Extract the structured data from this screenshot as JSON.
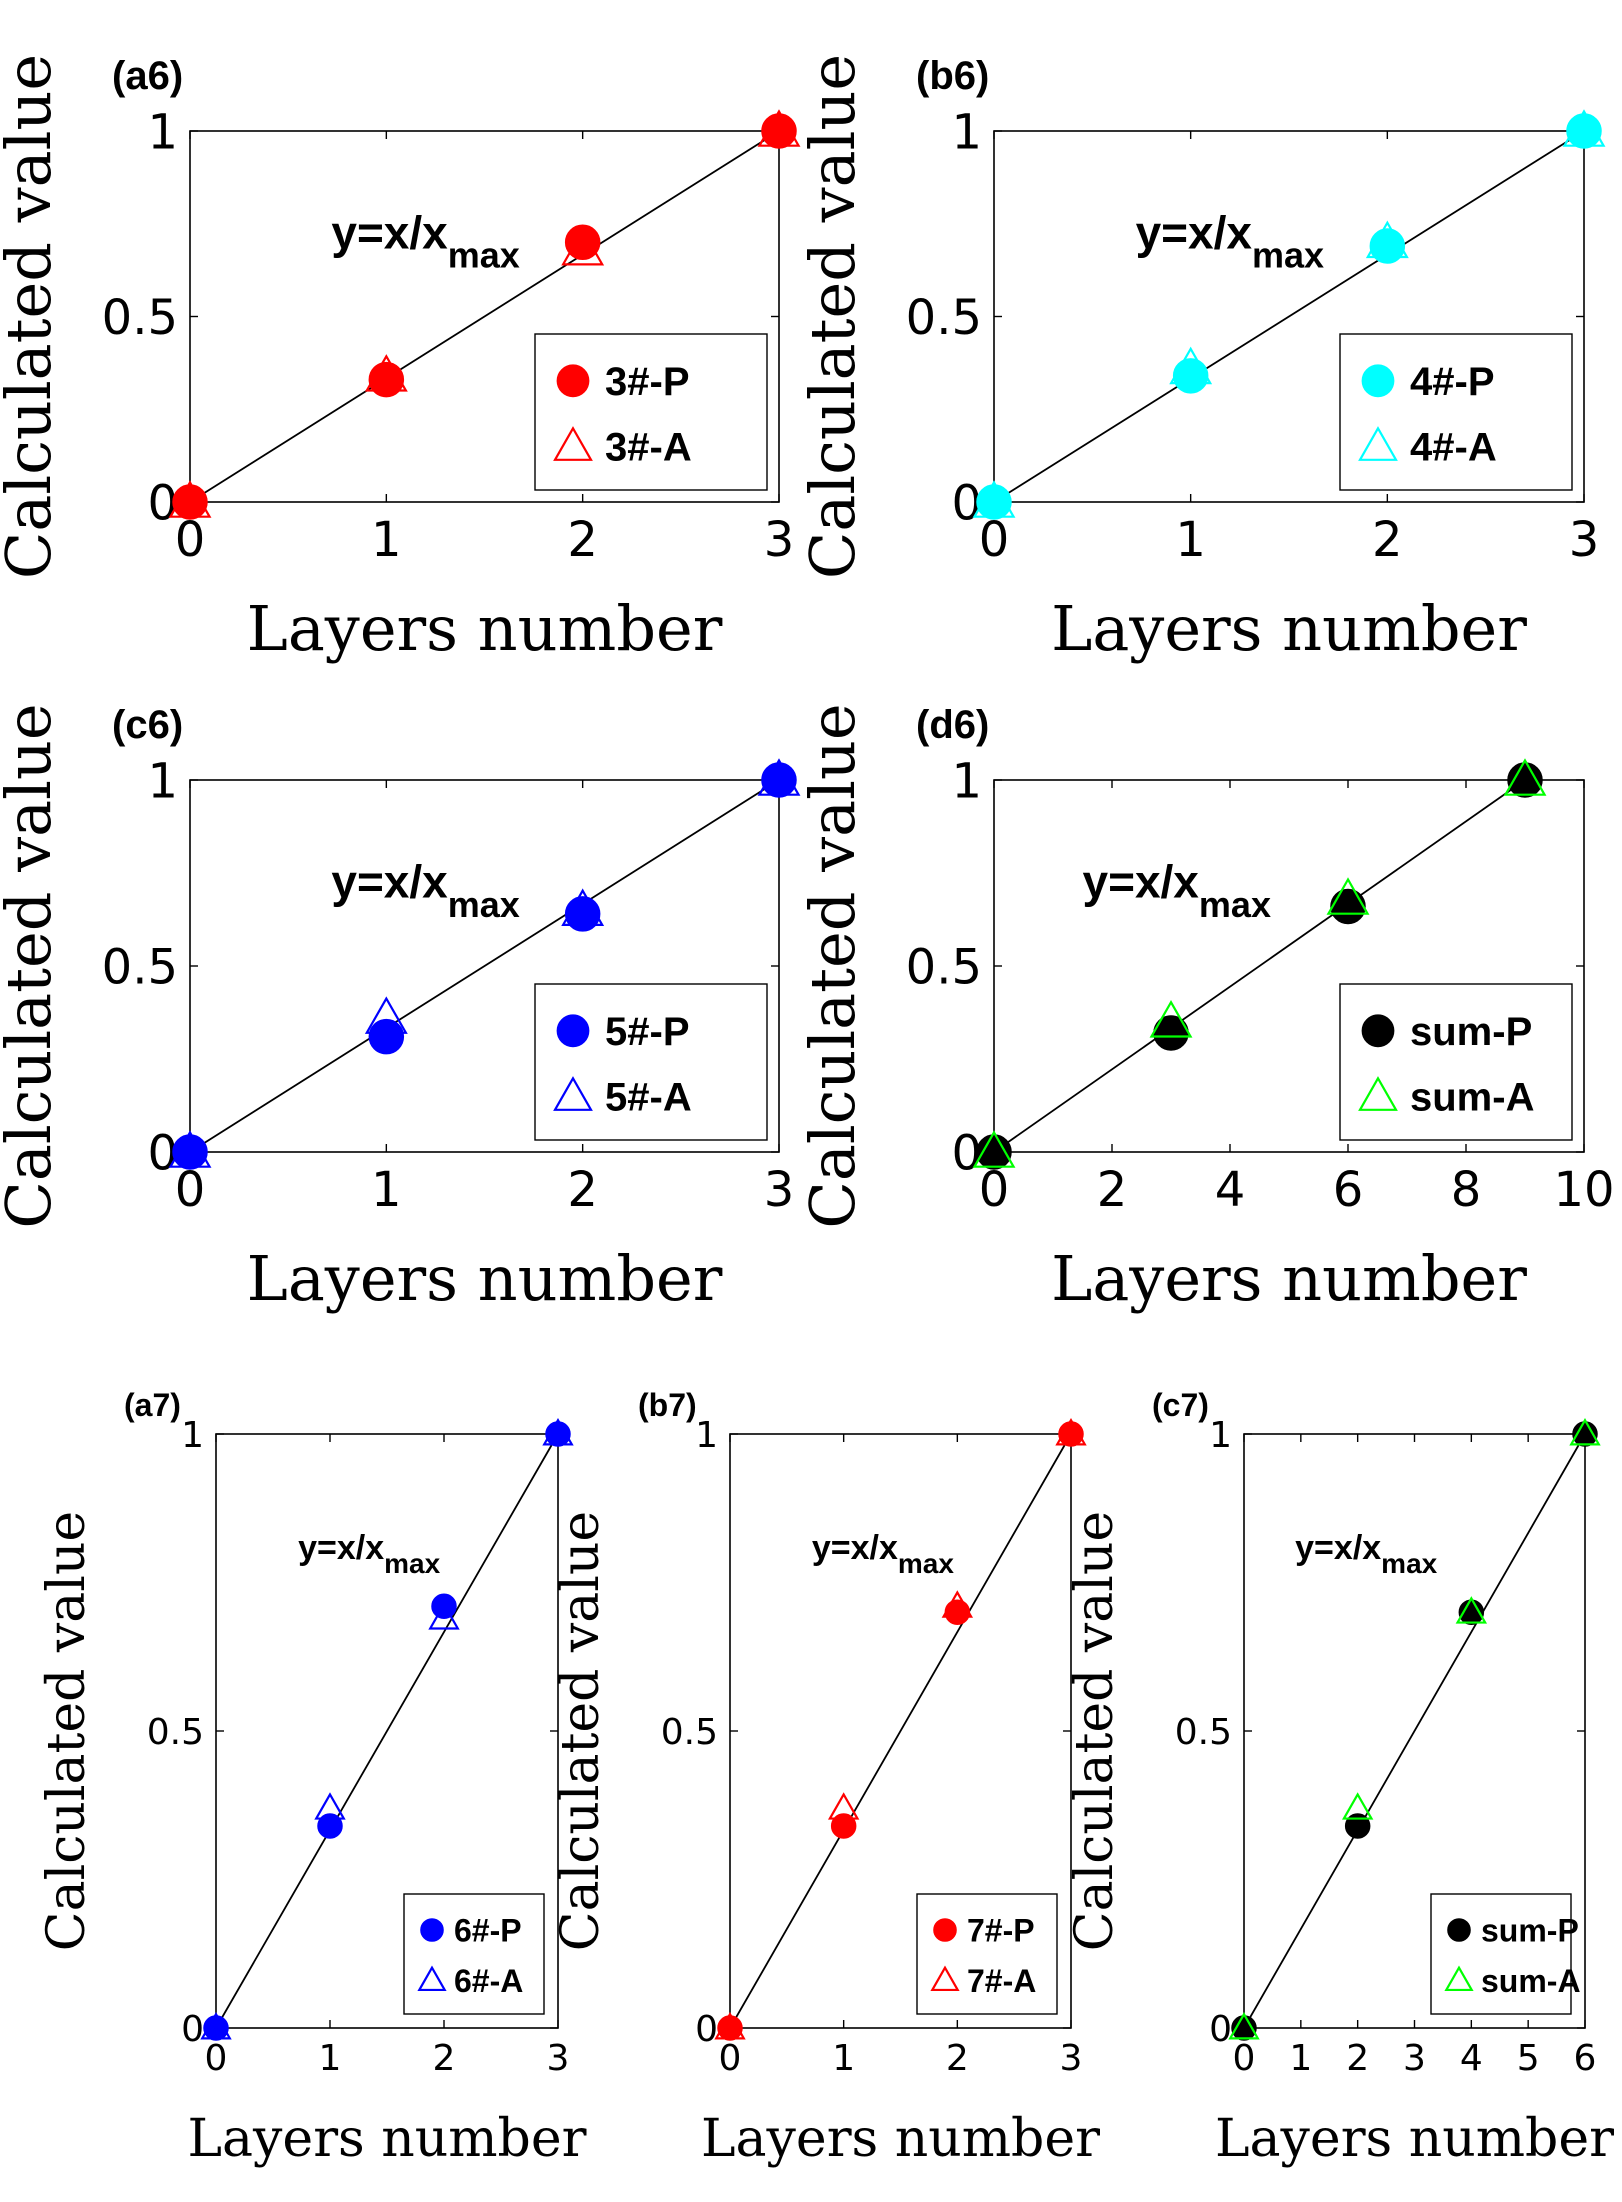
{
  "chart_data": [
    {
      "type": "scatter",
      "panel_label": "(a6)",
      "xlabel": "Layers number",
      "ylabel": "Calculated value",
      "xlim": [
        0,
        3
      ],
      "ylim": [
        0,
        1
      ],
      "xticks": [
        0,
        1,
        2,
        3
      ],
      "yticks": [
        0,
        0.5,
        1
      ],
      "xtick_labels": [
        "0",
        "1",
        "2",
        "3"
      ],
      "ytick_labels": [
        "0",
        "0.5",
        "1"
      ],
      "annotation": {
        "main": "y=x/x",
        "sub": "max"
      },
      "line": {
        "label": "y=x/x_max",
        "x": [
          0,
          3
        ],
        "y": [
          0,
          1
        ],
        "color": "#000000"
      },
      "legend_position": "lower-right",
      "series": [
        {
          "name": "3#-P",
          "marker": "circle",
          "color": "#ff0000",
          "x": [
            0,
            1,
            2,
            3
          ],
          "y": [
            0,
            0.33,
            0.7,
            1.0
          ]
        },
        {
          "name": "3#-A",
          "marker": "triangle",
          "color": "#ff0000",
          "x": [
            0,
            1,
            2,
            3
          ],
          "y": [
            0,
            0.34,
            0.68,
            1.0
          ]
        }
      ]
    },
    {
      "type": "scatter",
      "panel_label": "(b6)",
      "xlabel": "Layers number",
      "ylabel": "Calculated value",
      "xlim": [
        0,
        3
      ],
      "ylim": [
        0,
        1
      ],
      "xticks": [
        0,
        1,
        2,
        3
      ],
      "yticks": [
        0,
        0.5,
        1
      ],
      "xtick_labels": [
        "0",
        "1",
        "2",
        "3"
      ],
      "ytick_labels": [
        "0",
        "0.5",
        "1"
      ],
      "annotation": {
        "main": "y=x/x",
        "sub": "max"
      },
      "line": {
        "label": "y=x/x_max",
        "x": [
          0,
          3
        ],
        "y": [
          0,
          1
        ],
        "color": "#000000"
      },
      "legend_position": "lower-right",
      "series": [
        {
          "name": "4#-P",
          "marker": "circle",
          "color": "#00ffff",
          "x": [
            0,
            1,
            2,
            3
          ],
          "y": [
            0,
            0.34,
            0.69,
            1.0
          ]
        },
        {
          "name": "4#-A",
          "marker": "triangle",
          "color": "#00ffff",
          "x": [
            0,
            1,
            2,
            3
          ],
          "y": [
            0,
            0.36,
            0.7,
            1.0
          ]
        }
      ]
    },
    {
      "type": "scatter",
      "panel_label": "(c6)",
      "xlabel": "Layers number",
      "ylabel": "Calculated value",
      "xlim": [
        0,
        3
      ],
      "ylim": [
        0,
        1
      ],
      "xticks": [
        0,
        1,
        2,
        3
      ],
      "yticks": [
        0,
        0.5,
        1
      ],
      "xtick_labels": [
        "0",
        "1",
        "2",
        "3"
      ],
      "ytick_labels": [
        "0",
        "0.5",
        "1"
      ],
      "annotation": {
        "main": "y=x/x",
        "sub": "max"
      },
      "line": {
        "label": "y=x/x_max",
        "x": [
          0,
          3
        ],
        "y": [
          0,
          1
        ],
        "color": "#000000"
      },
      "legend_position": "lower-right",
      "series": [
        {
          "name": "5#-P",
          "marker": "circle",
          "color": "#0000ff",
          "x": [
            0,
            1,
            2,
            3
          ],
          "y": [
            0,
            0.31,
            0.64,
            1.0
          ]
        },
        {
          "name": "5#-A",
          "marker": "triangle",
          "color": "#0000ff",
          "x": [
            0,
            1,
            2,
            3
          ],
          "y": [
            0,
            0.36,
            0.65,
            1.0
          ]
        }
      ]
    },
    {
      "type": "scatter",
      "panel_label": "(d6)",
      "xlabel": "Layers number",
      "ylabel": "Calculated value",
      "xlim": [
        0,
        10
      ],
      "ylim": [
        0,
        1
      ],
      "xticks": [
        0,
        2,
        4,
        6,
        8,
        10
      ],
      "yticks": [
        0,
        0.5,
        1
      ],
      "xtick_labels": [
        "0",
        "2",
        "4",
        "6",
        "8",
        "10"
      ],
      "ytick_labels": [
        "0",
        "0.5",
        "1"
      ],
      "annotation": {
        "main": "y=x/x",
        "sub": "max"
      },
      "line": {
        "label": "y=x/x_max",
        "x": [
          0,
          9
        ],
        "y": [
          0,
          1
        ],
        "color": "#000000"
      },
      "legend_position": "lower-right",
      "series": [
        {
          "name": "sum-P",
          "marker": "circle",
          "color": "#000000",
          "x": [
            0,
            3,
            6,
            9
          ],
          "y": [
            0,
            0.32,
            0.66,
            1.0
          ]
        },
        {
          "name": "sum-A",
          "marker": "triangle",
          "color": "#00ff00",
          "x": [
            0,
            3,
            6,
            9
          ],
          "y": [
            0,
            0.35,
            0.68,
            1.0
          ]
        }
      ]
    },
    {
      "type": "scatter",
      "panel_label": "(a7)",
      "xlabel": "Layers number",
      "ylabel": "Calculated value",
      "xlim": [
        0,
        3
      ],
      "ylim": [
        0,
        1
      ],
      "xticks": [
        0,
        1,
        2,
        3
      ],
      "yticks": [
        0,
        0.5,
        1
      ],
      "xtick_labels": [
        "0",
        "1",
        "2",
        "3"
      ],
      "ytick_labels": [
        "0",
        "0.5",
        "1"
      ],
      "annotation": {
        "main": "y=x/x",
        "sub": "max"
      },
      "line": {
        "label": "y=x/x_max",
        "x": [
          0,
          3
        ],
        "y": [
          0,
          1
        ],
        "color": "#000000"
      },
      "legend_position": "lower-right",
      "series": [
        {
          "name": "6#-P",
          "marker": "circle",
          "color": "#0000ff",
          "x": [
            0,
            1,
            2,
            3
          ],
          "y": [
            0,
            0.34,
            0.71,
            1.0
          ]
        },
        {
          "name": "6#-A",
          "marker": "triangle",
          "color": "#0000ff",
          "x": [
            0,
            1,
            2,
            3
          ],
          "y": [
            0,
            0.37,
            0.69,
            1.0
          ]
        }
      ]
    },
    {
      "type": "scatter",
      "panel_label": "(b7)",
      "xlabel": "Layers number",
      "ylabel": "Calculated value",
      "xlim": [
        0,
        3
      ],
      "ylim": [
        0,
        1
      ],
      "xticks": [
        0,
        1,
        2,
        3
      ],
      "yticks": [
        0,
        0.5,
        1
      ],
      "xtick_labels": [
        "0",
        "1",
        "2",
        "3"
      ],
      "ytick_labels": [
        "0",
        "0.5",
        "1"
      ],
      "annotation": {
        "main": "y=x/x",
        "sub": "max"
      },
      "line": {
        "label": "y=x/x_max",
        "x": [
          0,
          3
        ],
        "y": [
          0,
          1
        ],
        "color": "#000000"
      },
      "legend_position": "lower-right",
      "series": [
        {
          "name": "7#-P",
          "marker": "circle",
          "color": "#ff0000",
          "x": [
            0,
            1,
            2,
            3
          ],
          "y": [
            0,
            0.34,
            0.7,
            1.0
          ]
        },
        {
          "name": "7#-A",
          "marker": "triangle",
          "color": "#ff0000",
          "x": [
            0,
            1,
            2,
            3
          ],
          "y": [
            0,
            0.37,
            0.71,
            1.0
          ]
        }
      ]
    },
    {
      "type": "scatter",
      "panel_label": "(c7)",
      "xlabel": "Layers number",
      "ylabel": "Calculated value",
      "xlim": [
        0,
        6
      ],
      "ylim": [
        0,
        1
      ],
      "xticks": [
        0,
        1,
        2,
        3,
        4,
        5,
        6
      ],
      "yticks": [
        0,
        0.5,
        1
      ],
      "xtick_labels": [
        "0",
        "1",
        "2",
        "3",
        "4",
        "5",
        "6"
      ],
      "ytick_labels": [
        "0",
        "0.5",
        "1"
      ],
      "annotation": {
        "main": "y=x/x",
        "sub": "max"
      },
      "line": {
        "label": "y=x/x_max",
        "x": [
          0,
          6
        ],
        "y": [
          0,
          1
        ],
        "color": "#000000"
      },
      "legend_position": "lower-right",
      "series": [
        {
          "name": "sum-P",
          "marker": "circle",
          "color": "#000000",
          "x": [
            0,
            2,
            4,
            6
          ],
          "y": [
            0,
            0.34,
            0.7,
            1.0
          ]
        },
        {
          "name": "sum-A",
          "marker": "triangle",
          "color": "#00ff00",
          "x": [
            0,
            2,
            4,
            6
          ],
          "y": [
            0,
            0.37,
            0.7,
            1.0
          ]
        }
      ]
    }
  ]
}
